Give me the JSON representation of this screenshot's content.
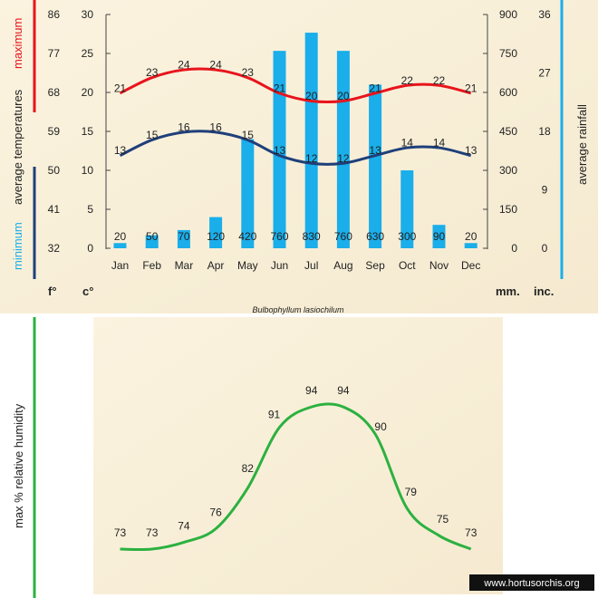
{
  "chart_data": [
    {
      "type": "bar+line",
      "title": "",
      "categories": [
        "Jan",
        "Feb",
        "Mar",
        "Apr",
        "May",
        "Jun",
        "Jul",
        "Aug",
        "Sep",
        "Oct",
        "Nov",
        "Dec"
      ],
      "rainfall": {
        "values": [
          20,
          50,
          70,
          120,
          420,
          760,
          830,
          760,
          630,
          300,
          90,
          20
        ],
        "labels": [
          "20",
          "50",
          "70",
          "120",
          "420",
          "760",
          "830",
          "760",
          "630",
          "300",
          "90",
          "20"
        ],
        "color": "#1aaeea",
        "ylim": [
          0,
          900
        ]
      },
      "temp_max": {
        "values": [
          21,
          23,
          24,
          24,
          23,
          21,
          20,
          20,
          21,
          22,
          22,
          21
        ],
        "labels": [
          "21",
          "23",
          "24",
          "24",
          "23",
          "21",
          "20",
          "20",
          "21",
          "22",
          "22",
          "21"
        ],
        "color": "#e8141c"
      },
      "temp_min": {
        "values": [
          13,
          15,
          16,
          16,
          15,
          13,
          12,
          12,
          13,
          14,
          14,
          13
        ],
        "labels": [
          "13",
          "15",
          "16",
          "16",
          "15",
          "13",
          "12",
          "12",
          "13",
          "14",
          "14",
          "13"
        ],
        "color": "#1f3f7a"
      },
      "axes": {
        "fahrenheit_ticks": [
          "86",
          "77",
          "68",
          "59",
          "50",
          "41",
          "32"
        ],
        "celsius_ticks": [
          "30",
          "25",
          "20",
          "15",
          "10",
          "5",
          "0"
        ],
        "mm_ticks": [
          "900",
          "750",
          "600",
          "450",
          "300",
          "150",
          "0"
        ],
        "inch_ticks": [
          "36",
          "27",
          "18",
          "9",
          "0"
        ],
        "unit_f": "f°",
        "unit_c": "c°",
        "unit_mm": "mm.",
        "unit_inch": "inc.",
        "ylim_celsius": [
          0,
          30
        ]
      },
      "labels": {
        "left_min": "minimum",
        "left_avg": "average  temperatures",
        "left_max": "maximum",
        "right": "average  rainfall"
      },
      "caption": "Bulbophyllum lasiochilum",
      "colors": {
        "panel": "#f9f0d8",
        "min_bar": "#1f3f7a",
        "max_bar": "#e8141c",
        "rain_bar": "#1aaeea"
      }
    },
    {
      "type": "line",
      "categories": [
        "Jan",
        "Feb",
        "Mar",
        "Apr",
        "May",
        "Jun",
        "Jul",
        "Aug",
        "Sep",
        "Oct",
        "Nov",
        "Dec"
      ],
      "values": [
        73,
        73,
        74,
        76,
        82,
        91,
        94,
        94,
        90,
        79,
        75,
        73
      ],
      "labels": [
        "73",
        "73",
        "74",
        "76",
        "82",
        "91",
        "94",
        "94",
        "90",
        "79",
        "75",
        "73"
      ],
      "ylabel": "max  %  relative  humidity",
      "color": "#2cb140"
    }
  ],
  "watermark": "www.hortusorchis.org"
}
